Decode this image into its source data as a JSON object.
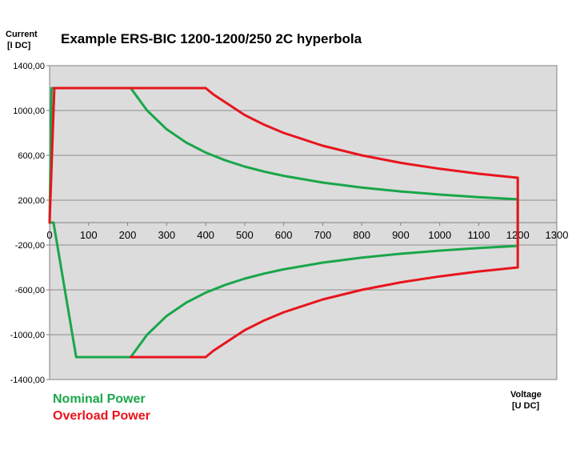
{
  "chart_data": {
    "type": "line",
    "title": "Example ERS-BIC 1200-1200/250 2C hyperbola",
    "ylabel": [
      "Current",
      "[I DC]"
    ],
    "xlabel": [
      "Voltage",
      "[U DC]"
    ],
    "xlim": [
      0,
      1300
    ],
    "ylim": [
      -1400,
      1400
    ],
    "x_ticks": [
      0,
      100,
      200,
      300,
      400,
      500,
      600,
      700,
      800,
      900,
      1000,
      1100,
      1200,
      1300
    ],
    "x_tick_labels": [
      "0",
      "100",
      "200",
      "300",
      "400",
      "500",
      "600",
      "700",
      "800",
      "900",
      "1000",
      "1100",
      "1200",
      "1300"
    ],
    "y_ticks": [
      -1400,
      -1000,
      -600,
      -200,
      200,
      600,
      1000,
      1400
    ],
    "y_tick_labels": [
      "-1400,00",
      "-1000,00",
      "-600,00",
      "-200,00",
      "200,00",
      "600,00",
      "1000,00",
      "1400,00"
    ],
    "grid": true,
    "legend_position": "bottom-left",
    "series": [
      {
        "name": "Nominal Power",
        "color": "#1aa64a",
        "x": [
          0,
          5,
          208,
          250,
          300,
          350,
          400,
          450,
          500,
          550,
          600,
          700,
          800,
          900,
          1000,
          1100,
          1200,
          1200,
          1100,
          1000,
          900,
          800,
          700,
          600,
          550,
          500,
          450,
          400,
          350,
          300,
          250,
          208,
          68,
          10,
          0
        ],
        "y": [
          0,
          1200,
          1200,
          1000,
          833,
          714,
          625,
          556,
          500,
          455,
          417,
          357,
          313,
          278,
          250,
          227,
          208,
          -208,
          -227,
          -250,
          -278,
          -313,
          -357,
          -417,
          -455,
          -500,
          -556,
          -625,
          -714,
          -833,
          -1000,
          -1200,
          -1200,
          0,
          0
        ]
      },
      {
        "name": "Overload Power",
        "color": "#e8141c",
        "x": [
          0,
          12,
          400,
          420,
          500,
          550,
          600,
          700,
          800,
          900,
          1000,
          1100,
          1200,
          1200,
          1100,
          1000,
          900,
          800,
          700,
          600,
          550,
          500,
          420,
          400,
          208
        ],
        "y": [
          0,
          1200,
          1200,
          1143,
          960,
          873,
          800,
          686,
          600,
          533,
          480,
          436,
          400,
          -400,
          -436,
          -480,
          -533,
          -600,
          -686,
          -800,
          -873,
          -960,
          -1143,
          -1200,
          -1200
        ]
      }
    ]
  }
}
